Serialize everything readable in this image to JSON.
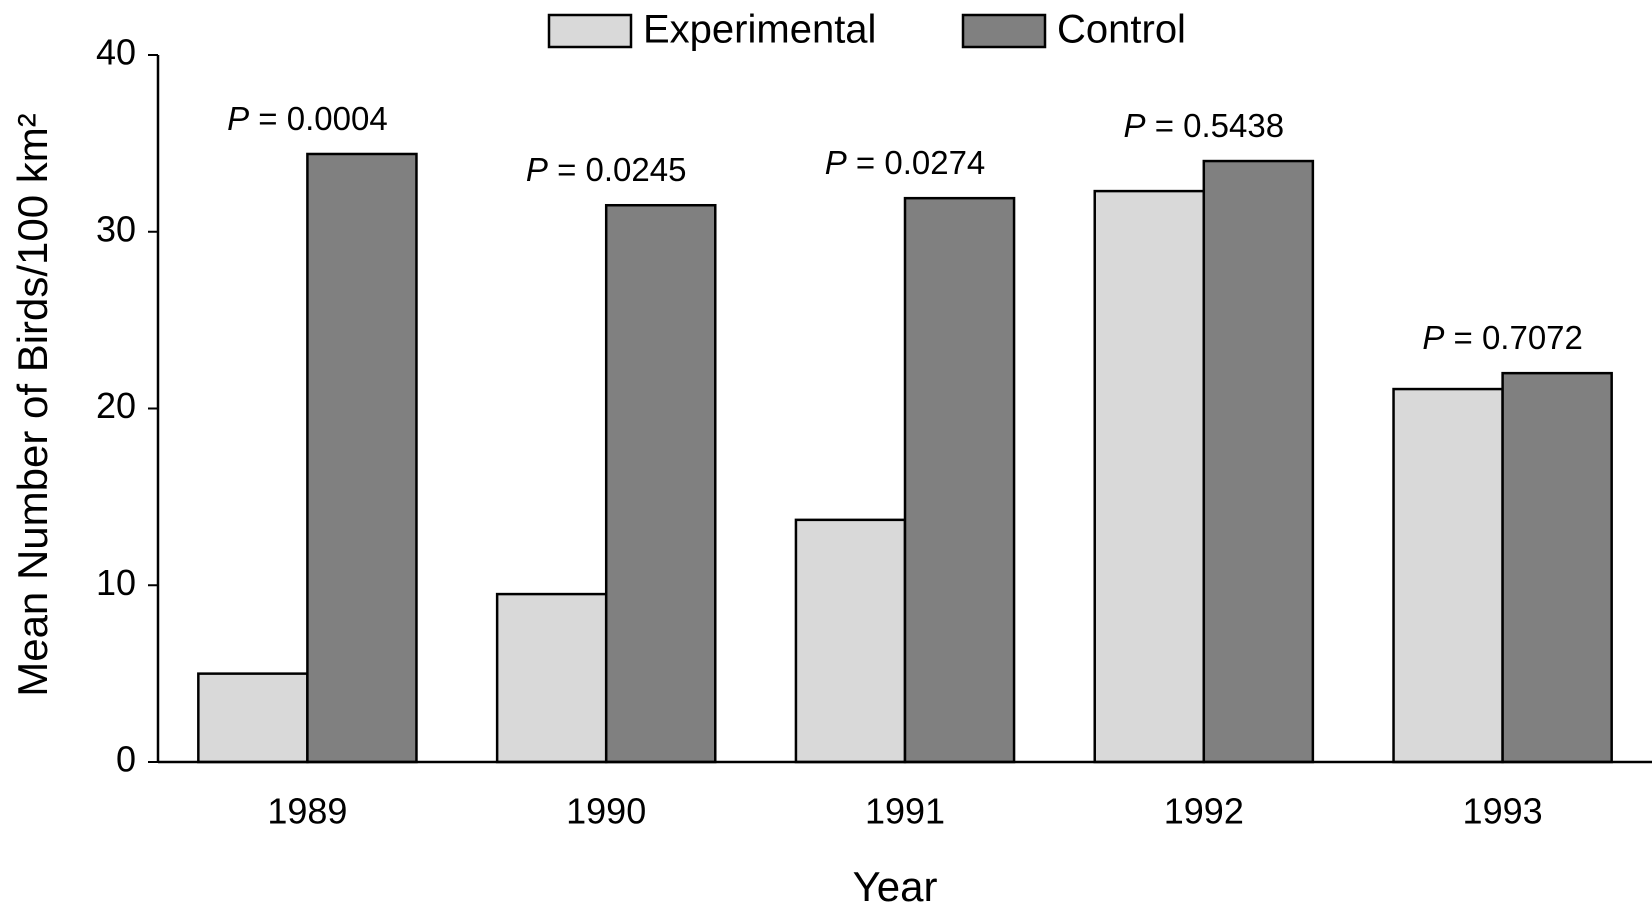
{
  "chart_data": {
    "type": "bar",
    "y_label": "Mean Number of Birds/100 km²",
    "x_label": "Year",
    "categories": [
      "1989",
      "1990",
      "1991",
      "1992",
      "1993"
    ],
    "series": [
      {
        "name": "Experimental",
        "color": "#d9d9d9",
        "values": [
          5.0,
          9.5,
          13.7,
          32.3,
          21.1
        ]
      },
      {
        "name": "Control",
        "color": "#808080",
        "values": [
          34.4,
          31.5,
          31.9,
          34.0,
          22.0
        ]
      }
    ],
    "annotations": [
      {
        "symbol": "P",
        "text": "= 0.0004"
      },
      {
        "symbol": "P",
        "text": "= 0.0245"
      },
      {
        "symbol": "P",
        "text": "= 0.0274"
      },
      {
        "symbol": "P",
        "text": "= 0.5438"
      },
      {
        "symbol": "P",
        "text": "= 0.7072"
      }
    ],
    "ylim": [
      0,
      40
    ],
    "yticks": [
      0,
      10,
      20,
      30,
      40
    ],
    "grid": false,
    "legend": "top"
  }
}
